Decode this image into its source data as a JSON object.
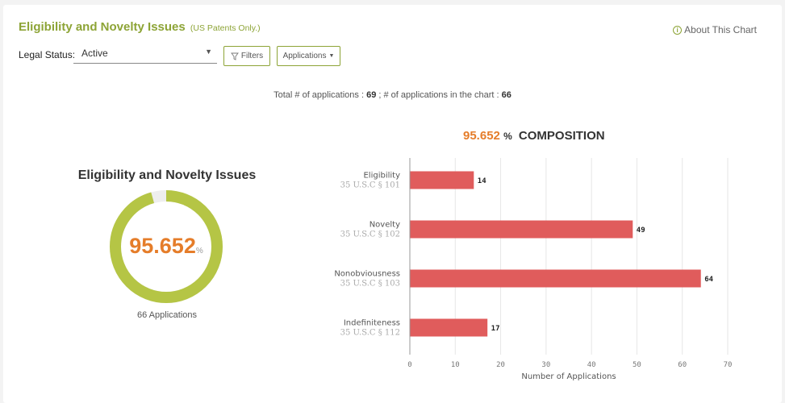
{
  "header": {
    "title": "Eligibility and Novelty Issues",
    "subtitle": "(US Patents Only.)",
    "about_label": "About This Chart",
    "info_glyph": "i"
  },
  "filters": {
    "legal_status_label": "Legal Status:",
    "legal_status_value": "Active",
    "filters_button": "Filters",
    "applications_button": "Applications"
  },
  "totals": {
    "prefix": "Total # of applications : ",
    "total": "69",
    "middle": " ; # of applications in the chart : ",
    "in_chart": "66"
  },
  "composition": {
    "percent": "95.652",
    "percent_sign": "%",
    "label": "COMPOSITION"
  },
  "donut": {
    "title": "Eligibility and Novelty Issues",
    "value": "95.652",
    "sign": "%",
    "caption": "66 Applications",
    "fraction": 0.95652,
    "fill_color": "#b5c545",
    "remainder_color": "#eeeeee"
  },
  "chart_data": {
    "type": "bar",
    "orientation": "horizontal",
    "categories": [
      {
        "name": "Eligibility",
        "sub": "35 U.S.C § 101"
      },
      {
        "name": "Novelty",
        "sub": "35 U.S.C § 102"
      },
      {
        "name": "Nonobviousness",
        "sub": "35 U.S.C § 103"
      },
      {
        "name": "Indefiniteness",
        "sub": "35 U.S.C § 112"
      }
    ],
    "values": [
      14,
      49,
      64,
      17
    ],
    "xlabel": "Number of Applications",
    "xlim": [
      0,
      70
    ],
    "xticks": [
      0,
      10,
      20,
      30,
      40,
      50,
      60,
      70
    ],
    "grid": true,
    "bar_color": "#e05c5c"
  }
}
